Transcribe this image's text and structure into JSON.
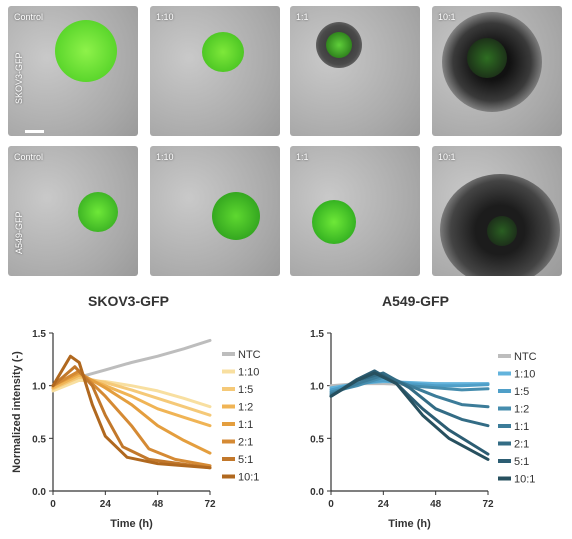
{
  "row_labels": [
    "SKOV3-GFP",
    "A549-GFP"
  ],
  "panel_labels": [
    "Control",
    "1:10",
    "1:1",
    "10:1"
  ],
  "titles": [
    "SKOV3-GFP",
    "A549-GFP"
  ],
  "chart_data": [
    {
      "type": "line",
      "title": "SKOV3-GFP",
      "xlabel": "Time (h)",
      "ylabel": "Normalized intensity (-)",
      "xlim": [
        0,
        72
      ],
      "ylim": [
        0,
        1.5
      ],
      "xticks": [
        "0",
        "24",
        "48",
        "72"
      ],
      "yticks": [
        "0.0",
        "0.5",
        "1.0",
        "1.5"
      ],
      "legend_position": "right",
      "series": [
        {
          "name": "NTC",
          "color": "#bdbdbd",
          "points": [
            [
              0,
              1.0
            ],
            [
              12,
              1.08
            ],
            [
              24,
              1.15
            ],
            [
              36,
              1.22
            ],
            [
              48,
              1.28
            ],
            [
              60,
              1.35
            ],
            [
              72,
              1.43
            ]
          ]
        },
        {
          "name": "1:10",
          "color": "#f8dfa0",
          "points": [
            [
              0,
              0.95
            ],
            [
              12,
              1.05
            ],
            [
              24,
              1.04
            ],
            [
              36,
              1.0
            ],
            [
              48,
              0.95
            ],
            [
              60,
              0.88
            ],
            [
              72,
              0.8
            ]
          ]
        },
        {
          "name": "1:5",
          "color": "#f5c978",
          "points": [
            [
              0,
              0.97
            ],
            [
              12,
              1.08
            ],
            [
              24,
              1.03
            ],
            [
              36,
              0.96
            ],
            [
              48,
              0.88
            ],
            [
              60,
              0.8
            ],
            [
              72,
              0.72
            ]
          ]
        },
        {
          "name": "1:2",
          "color": "#f0b455",
          "points": [
            [
              0,
              0.98
            ],
            [
              12,
              1.1
            ],
            [
              24,
              1.0
            ],
            [
              36,
              0.9
            ],
            [
              48,
              0.78
            ],
            [
              60,
              0.7
            ],
            [
              72,
              0.62
            ]
          ]
        },
        {
          "name": "1:1",
          "color": "#e49e3e",
          "points": [
            [
              0,
              1.0
            ],
            [
              12,
              1.12
            ],
            [
              24,
              0.98
            ],
            [
              36,
              0.82
            ],
            [
              48,
              0.62
            ],
            [
              60,
              0.48
            ],
            [
              72,
              0.36
            ]
          ]
        },
        {
          "name": "2:1",
          "color": "#d58a34",
          "points": [
            [
              0,
              1.0
            ],
            [
              12,
              1.14
            ],
            [
              24,
              0.9
            ],
            [
              36,
              0.62
            ],
            [
              44,
              0.4
            ],
            [
              56,
              0.3
            ],
            [
              72,
              0.24
            ]
          ]
        },
        {
          "name": "5:1",
          "color": "#c2782b",
          "points": [
            [
              0,
              1.0
            ],
            [
              10,
              1.18
            ],
            [
              18,
              1.0
            ],
            [
              24,
              0.72
            ],
            [
              32,
              0.42
            ],
            [
              44,
              0.3
            ],
            [
              72,
              0.22
            ]
          ]
        },
        {
          "name": "10:1",
          "color": "#b0681f",
          "points": [
            [
              0,
              1.0
            ],
            [
              8,
              1.28
            ],
            [
              12,
              1.22
            ],
            [
              18,
              0.82
            ],
            [
              24,
              0.52
            ],
            [
              34,
              0.32
            ],
            [
              48,
              0.26
            ],
            [
              72,
              0.22
            ]
          ]
        }
      ]
    },
    {
      "type": "line",
      "title": "A549-GFP",
      "xlabel": "Time (h)",
      "ylabel": "",
      "xlim": [
        0,
        72
      ],
      "ylim": [
        0,
        1.5
      ],
      "xticks": [
        "0",
        "24",
        "48",
        "72"
      ],
      "yticks": [
        "0.0",
        "0.5",
        "1.0",
        "1.5"
      ],
      "legend_position": "right",
      "series": [
        {
          "name": "NTC",
          "color": "#bdbdbd",
          "points": [
            [
              0,
              1.0
            ],
            [
              12,
              1.02
            ],
            [
              24,
              1.02
            ],
            [
              36,
              1.01
            ],
            [
              48,
              1.02
            ],
            [
              60,
              1.01
            ],
            [
              72,
              1.02
            ]
          ]
        },
        {
          "name": "1:10",
          "color": "#63b3dc",
          "points": [
            [
              0,
              0.98
            ],
            [
              12,
              1.02
            ],
            [
              24,
              1.04
            ],
            [
              36,
              1.03
            ],
            [
              48,
              1.02
            ],
            [
              60,
              1.02
            ],
            [
              72,
              1.02
            ]
          ]
        },
        {
          "name": "1:5",
          "color": "#4f9fc8",
          "points": [
            [
              0,
              0.96
            ],
            [
              12,
              1.02
            ],
            [
              24,
              1.05
            ],
            [
              36,
              1.02
            ],
            [
              48,
              1.0
            ],
            [
              60,
              1.0
            ],
            [
              72,
              1.01
            ]
          ]
        },
        {
          "name": "1:2",
          "color": "#468dae",
          "points": [
            [
              0,
              0.94
            ],
            [
              12,
              1.0
            ],
            [
              24,
              1.08
            ],
            [
              36,
              1.0
            ],
            [
              48,
              0.98
            ],
            [
              60,
              0.96
            ],
            [
              72,
              0.97
            ]
          ]
        },
        {
          "name": "1:1",
          "color": "#3c7c99",
          "points": [
            [
              0,
              0.92
            ],
            [
              12,
              1.02
            ],
            [
              24,
              1.1
            ],
            [
              36,
              1.0
            ],
            [
              48,
              0.9
            ],
            [
              60,
              0.82
            ],
            [
              72,
              0.8
            ]
          ]
        },
        {
          "name": "2:1",
          "color": "#336c85",
          "points": [
            [
              0,
              0.9
            ],
            [
              12,
              1.05
            ],
            [
              24,
              1.12
            ],
            [
              36,
              0.98
            ],
            [
              48,
              0.78
            ],
            [
              60,
              0.68
            ],
            [
              72,
              0.62
            ]
          ]
        },
        {
          "name": "5:1",
          "color": "#2c5d73",
          "points": [
            [
              0,
              0.9
            ],
            [
              12,
              1.06
            ],
            [
              20,
              1.14
            ],
            [
              30,
              1.02
            ],
            [
              42,
              0.78
            ],
            [
              54,
              0.58
            ],
            [
              72,
              0.35
            ]
          ]
        },
        {
          "name": "10:1",
          "color": "#27505f",
          "points": [
            [
              0,
              0.9
            ],
            [
              12,
              1.05
            ],
            [
              20,
              1.12
            ],
            [
              30,
              1.02
            ],
            [
              42,
              0.72
            ],
            [
              54,
              0.5
            ],
            [
              72,
              0.3
            ]
          ]
        }
      ]
    }
  ]
}
